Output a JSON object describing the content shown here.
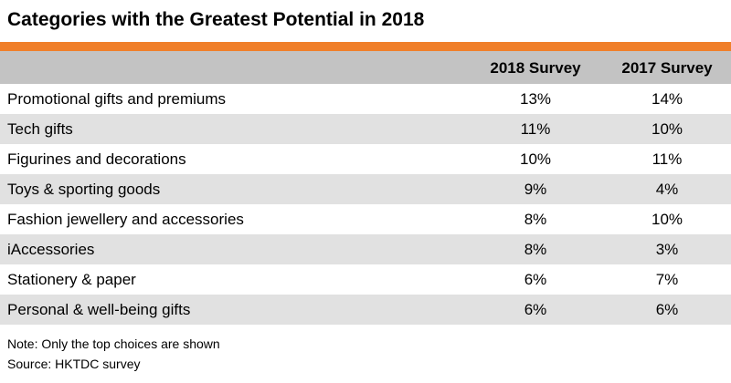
{
  "chart_data": {
    "type": "table",
    "title": "Categories with the Greatest Potential in 2018",
    "columns": [
      "",
      "2018 Survey",
      "2017 Survey"
    ],
    "rows": [
      {
        "category": "Promotional gifts and premiums",
        "y2018": "13%",
        "y2017": "14%"
      },
      {
        "category": "Tech gifts",
        "y2018": "11%",
        "y2017": "10%"
      },
      {
        "category": "Figurines and decorations",
        "y2018": "10%",
        "y2017": "11%"
      },
      {
        "category": "Toys & sporting goods",
        "y2018": "9%",
        "y2017": "4%"
      },
      {
        "category": "Fashion jewellery and accessories",
        "y2018": "8%",
        "y2017": "10%"
      },
      {
        "category": "iAccessories",
        "y2018": "8%",
        "y2017": "3%"
      },
      {
        "category": "Stationery & paper",
        "y2018": "6%",
        "y2017": "7%"
      },
      {
        "category": "Personal & well-being gifts",
        "y2018": "6%",
        "y2017": "6%"
      }
    ],
    "notes": [
      "Note: Only the top choices are shown",
      "Source: HKTDC survey"
    ]
  },
  "colors": {
    "accent": "#f07f2a",
    "header_bg": "#c3c3c3",
    "row_alt_bg": "#e1e1e1",
    "row_bg": "#ffffff"
  }
}
